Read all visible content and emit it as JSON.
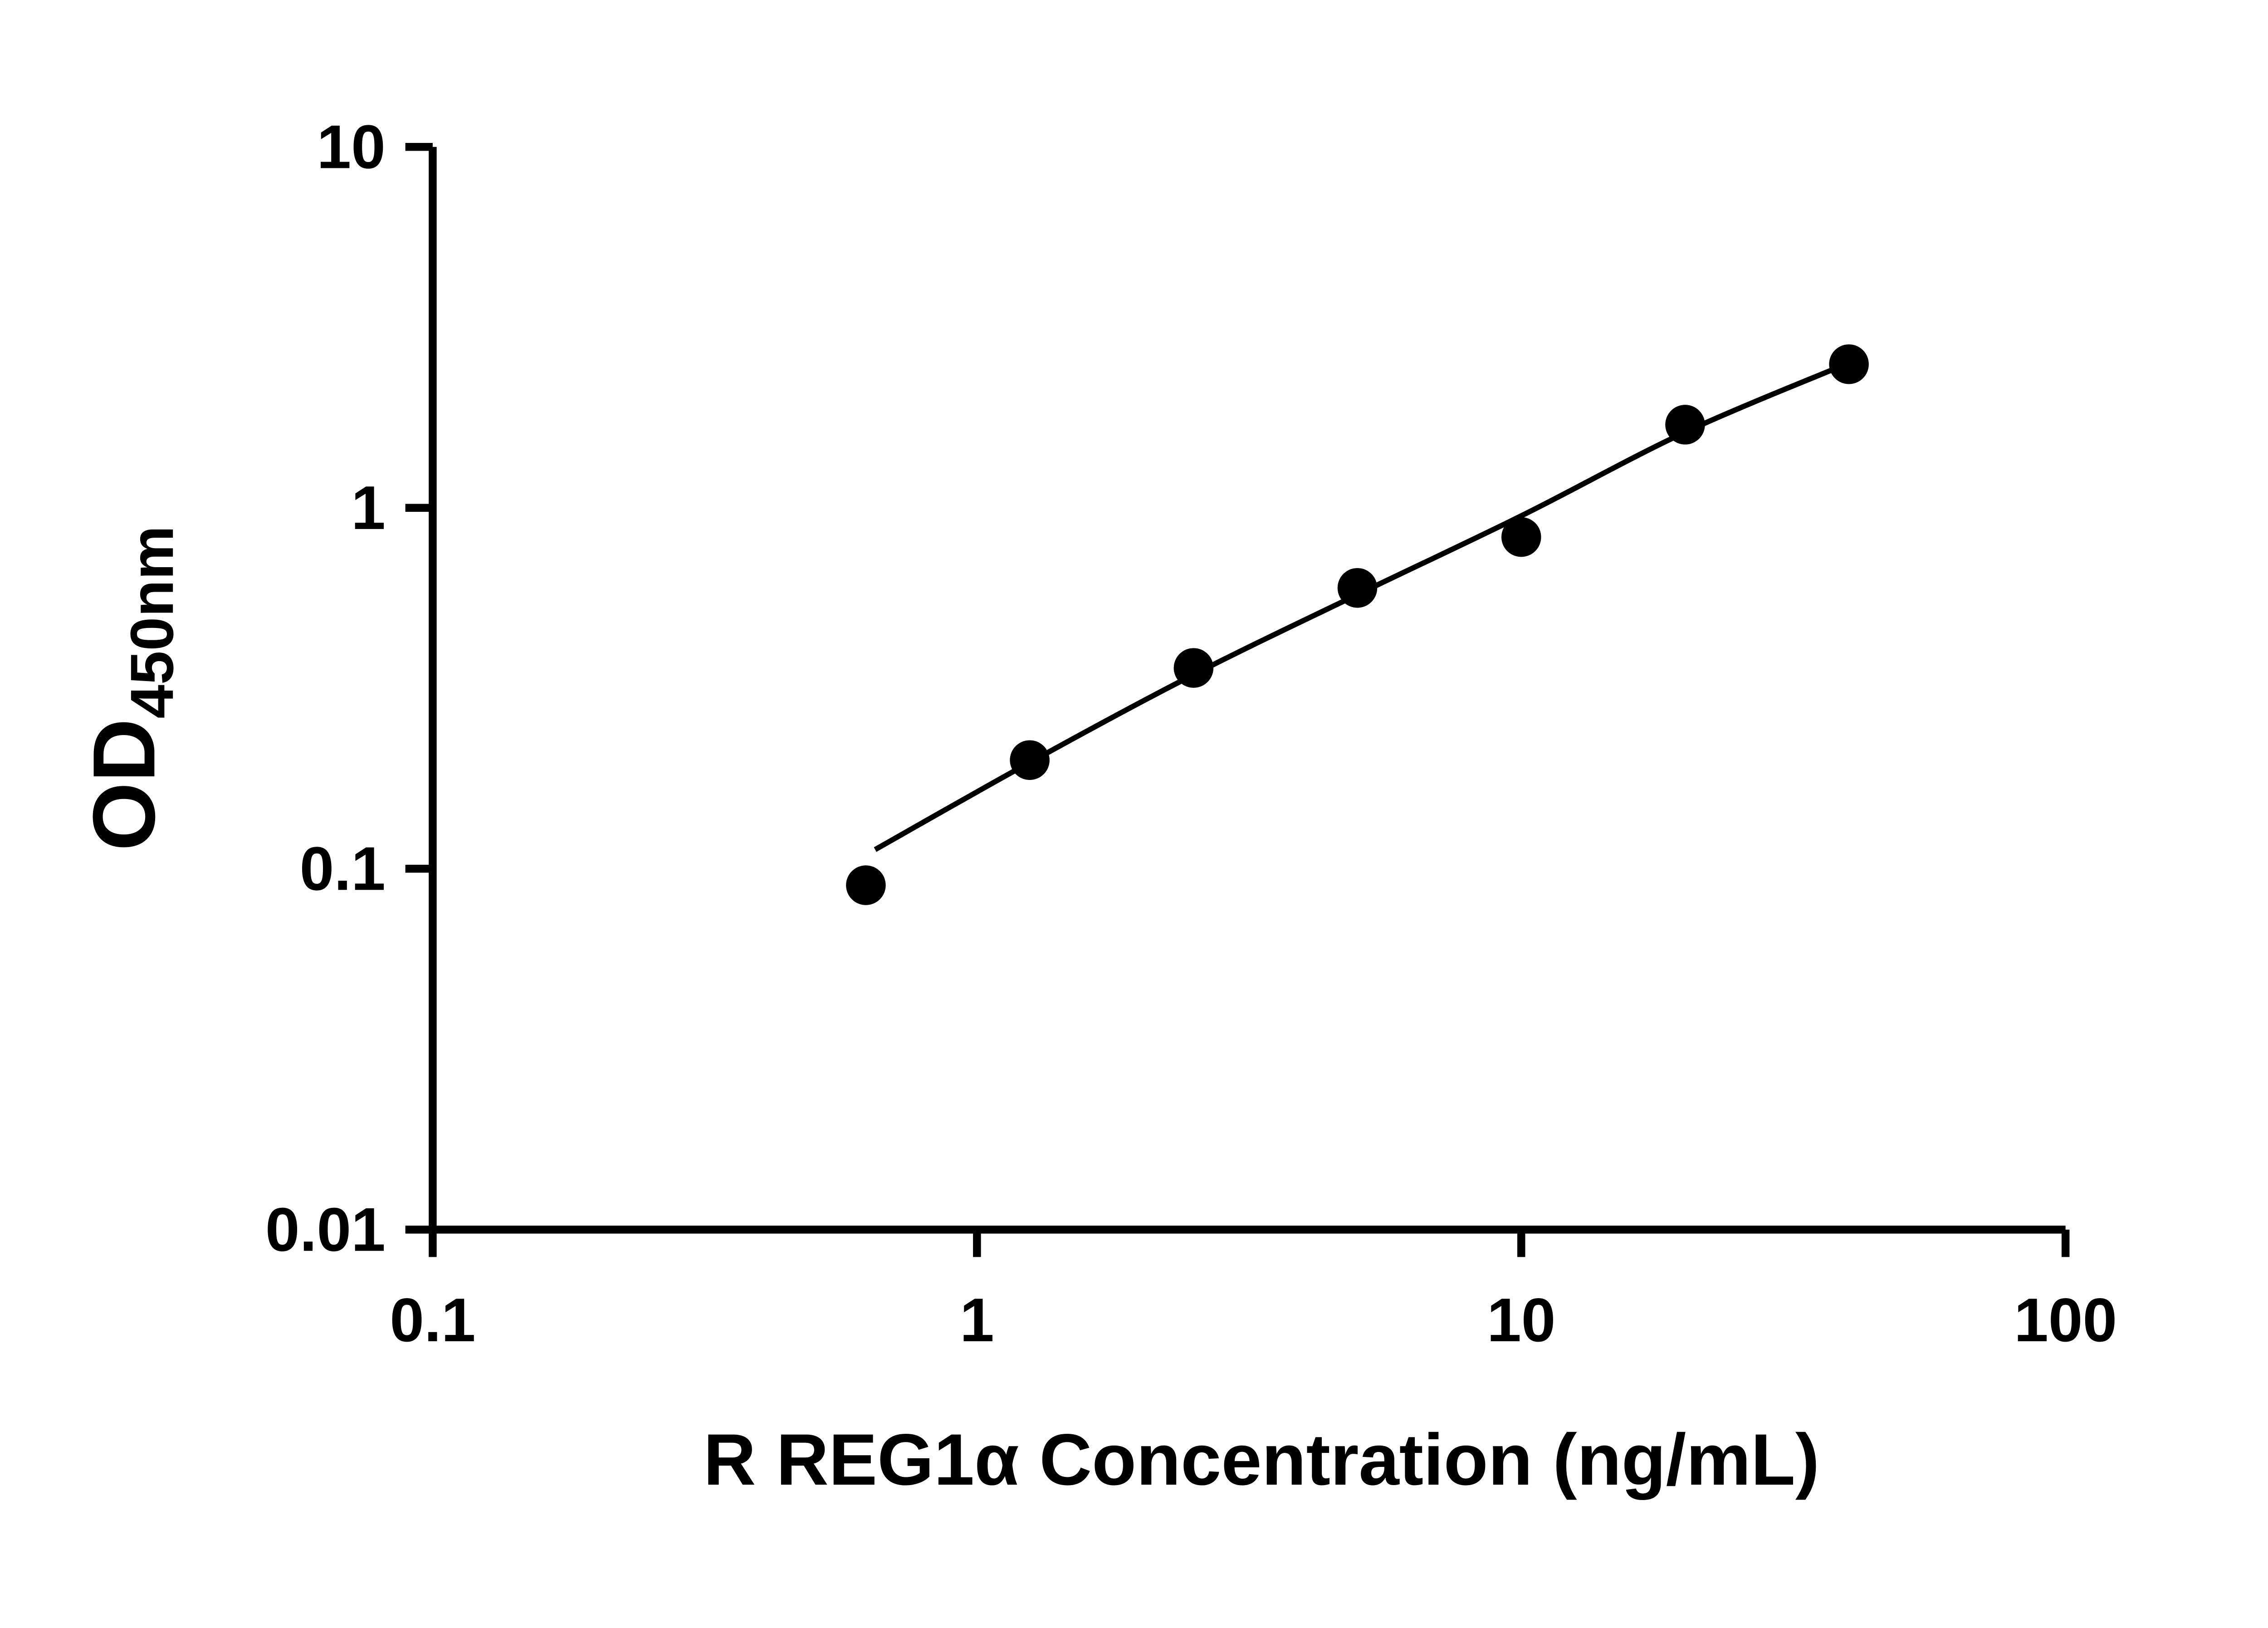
{
  "figure": {
    "background_color": "#ffffff"
  },
  "chart_data": {
    "type": "scatter",
    "xlabel": "R REG1α Concentration (ng/mL)",
    "ylabel_main": "OD",
    "ylabel_sub": "450nm",
    "x_scale": "log",
    "y_scale": "log",
    "xlim": [
      0.1,
      100
    ],
    "ylim": [
      0.01,
      10
    ],
    "grid": false,
    "legend": false,
    "axis_color": "#000000",
    "marker_color": "#000000",
    "line_color": "#000000",
    "x_ticks": [
      {
        "value": 0.1,
        "label": "0.1"
      },
      {
        "value": 1,
        "label": "1"
      },
      {
        "value": 10,
        "label": "10"
      },
      {
        "value": 100,
        "label": "100"
      }
    ],
    "y_ticks": [
      {
        "value": 0.01,
        "label": "0.01"
      },
      {
        "value": 0.1,
        "label": "0.1"
      },
      {
        "value": 1,
        "label": "1"
      },
      {
        "value": 10,
        "label": "10"
      }
    ],
    "points": [
      {
        "x": 0.625,
        "y": 0.09
      },
      {
        "x": 1.25,
        "y": 0.2
      },
      {
        "x": 2.5,
        "y": 0.36
      },
      {
        "x": 5,
        "y": 0.6
      },
      {
        "x": 10,
        "y": 0.83
      },
      {
        "x": 20,
        "y": 1.7
      },
      {
        "x": 40,
        "y": 2.5
      }
    ],
    "fit_curve": [
      {
        "x": 0.65,
        "y": 0.113
      },
      {
        "x": 1.25,
        "y": 0.197
      },
      {
        "x": 2.5,
        "y": 0.345
      },
      {
        "x": 5,
        "y": 0.575
      },
      {
        "x": 10,
        "y": 0.95
      },
      {
        "x": 20,
        "y": 1.62
      },
      {
        "x": 40,
        "y": 2.52
      }
    ]
  }
}
